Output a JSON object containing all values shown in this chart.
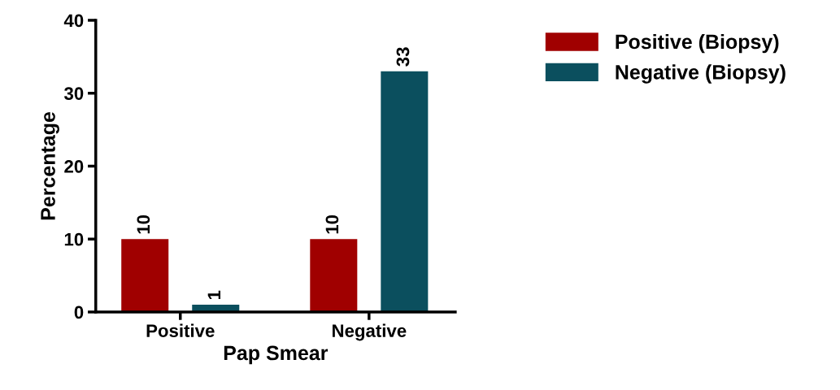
{
  "chart_data": {
    "type": "bar",
    "xlabel": "Pap Smear",
    "ylabel": "Percentage",
    "categories": [
      "Positive",
      "Negative"
    ],
    "series": [
      {
        "name": "Positive (Biopsy)",
        "color": "#a00000",
        "values": [
          10,
          10
        ]
      },
      {
        "name": "Negative (Biopsy)",
        "color": "#0b4f5e",
        "values": [
          1,
          33
        ]
      }
    ],
    "ylim": [
      0,
      40
    ],
    "yticks": [
      0,
      10,
      20,
      30,
      40
    ],
    "data_labels": true,
    "legend": "top right",
    "grid": false
  }
}
